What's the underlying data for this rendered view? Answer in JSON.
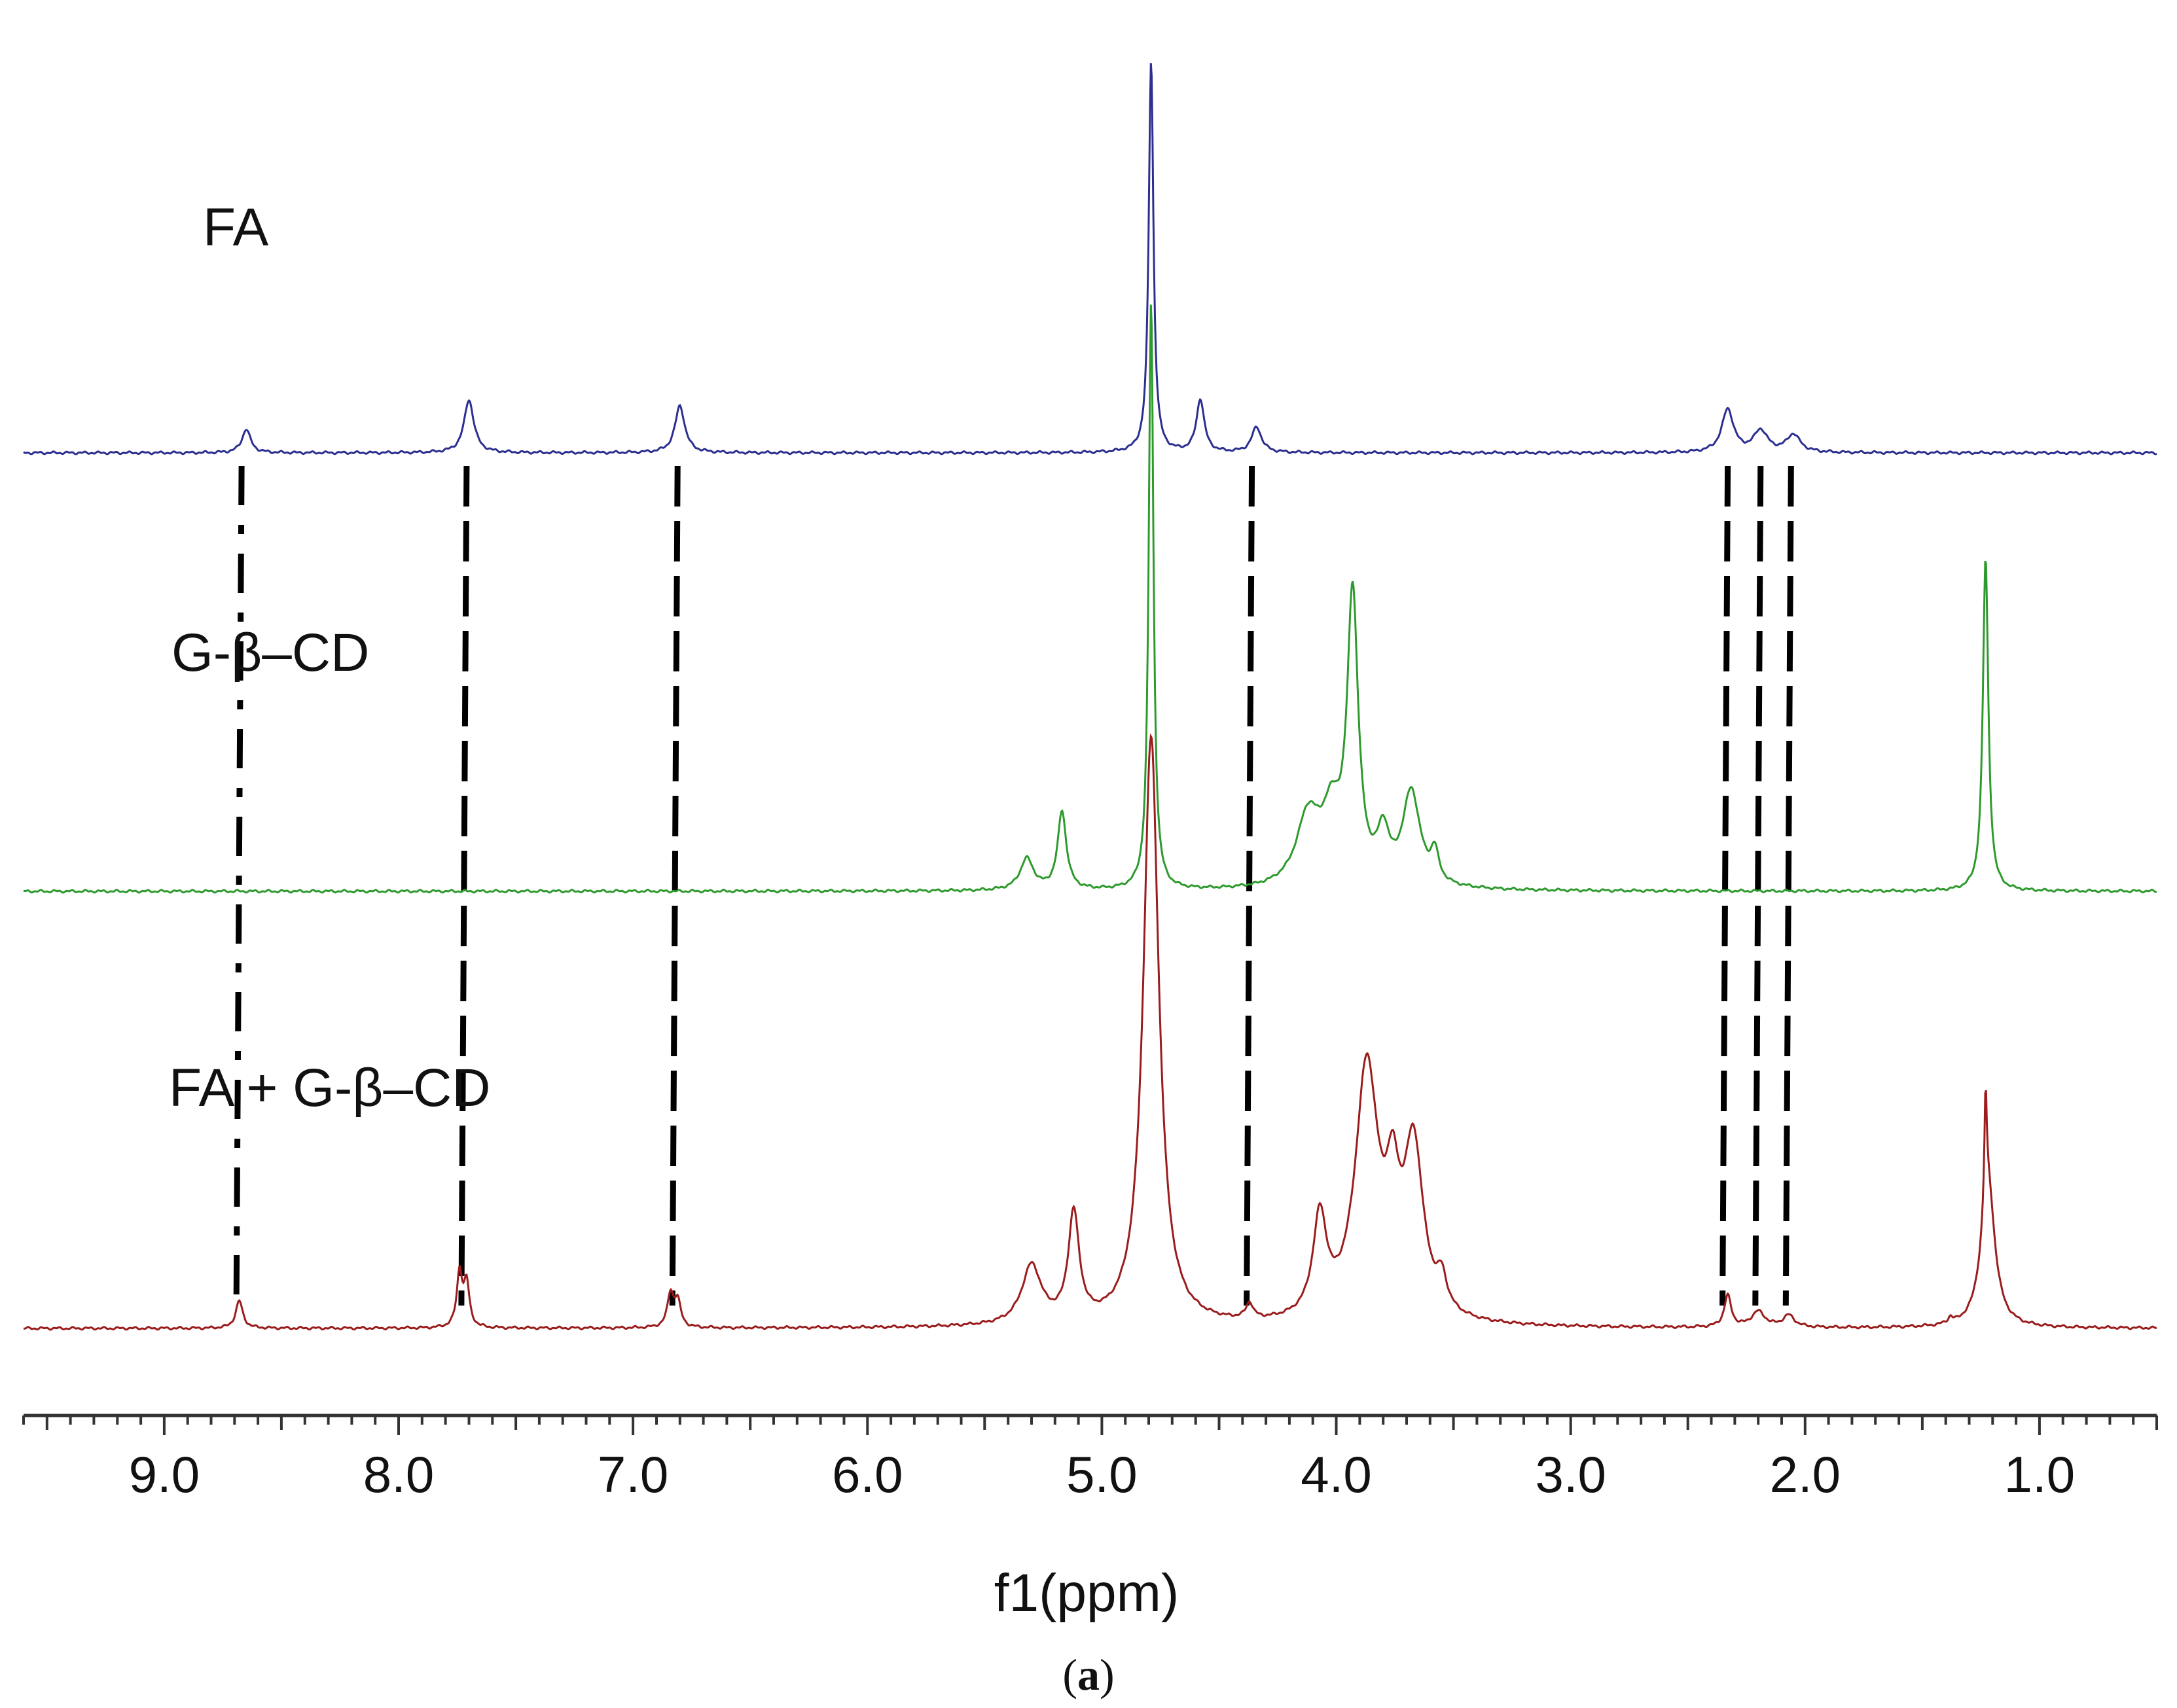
{
  "chart_data": {
    "type": "line",
    "title": "",
    "xlabel": "f1(ppm)",
    "ylabel": "",
    "xlim": [
      9.6,
      0.5
    ],
    "x_reversed": true,
    "grid": false,
    "ticks": [
      "9.0",
      "8.0",
      "7.0",
      "6.0",
      "5.0",
      "4.0",
      "3.0",
      "2.0",
      "1.0"
    ],
    "tick_values": [
      9.0,
      8.0,
      7.0,
      6.0,
      5.0,
      4.0,
      3.0,
      2.0,
      1.0
    ],
    "series": [
      {
        "name": "FA",
        "color": "#2b2f8f",
        "baseline_offset": 2.0,
        "peaks": [
          {
            "ppm": 8.65,
            "height": 0.12,
            "width": 0.022
          },
          {
            "ppm": 7.7,
            "height": 0.27,
            "width": 0.025
          },
          {
            "ppm": 6.8,
            "height": 0.24,
            "width": 0.025
          },
          {
            "ppm": 4.79,
            "height": 2.0,
            "width": 0.012
          },
          {
            "ppm": 4.58,
            "height": 0.27,
            "width": 0.02
          },
          {
            "ppm": 4.34,
            "height": 0.13,
            "width": 0.025
          },
          {
            "ppm": 2.33,
            "height": 0.22,
            "width": 0.03
          },
          {
            "ppm": 2.19,
            "height": 0.11,
            "width": 0.035
          },
          {
            "ppm": 2.05,
            "height": 0.09,
            "width": 0.035
          }
        ]
      },
      {
        "name": "G-β–CD",
        "color": "#2e9a2e",
        "baseline_offset": 1.0,
        "peaks": [
          {
            "ppm": 5.32,
            "height": 0.16,
            "width": 0.035
          },
          {
            "ppm": 5.17,
            "height": 0.4,
            "width": 0.022
          },
          {
            "ppm": 4.79,
            "height": 3.0,
            "width": 0.012
          },
          {
            "ppm": 4.12,
            "height": 0.35,
            "width": 0.06
          },
          {
            "ppm": 4.02,
            "height": 0.32,
            "width": 0.05
          },
          {
            "ppm": 3.93,
            "height": 1.45,
            "width": 0.028
          },
          {
            "ppm": 3.8,
            "height": 0.24,
            "width": 0.03
          },
          {
            "ppm": 3.68,
            "height": 0.48,
            "width": 0.045
          },
          {
            "ppm": 3.58,
            "height": 0.15,
            "width": 0.02
          },
          {
            "ppm": 1.23,
            "height": 1.7,
            "width": 0.014
          }
        ]
      },
      {
        "name": "FA + G-β–CD",
        "color": "#9b1c1c",
        "baseline_offset": 0.0,
        "peaks": [
          {
            "ppm": 8.68,
            "height": 0.14,
            "width": 0.018
          },
          {
            "ppm": 7.74,
            "height": 0.28,
            "width": 0.014
          },
          {
            "ppm": 7.71,
            "height": 0.22,
            "width": 0.014
          },
          {
            "ppm": 6.84,
            "height": 0.17,
            "width": 0.016
          },
          {
            "ppm": 6.81,
            "height": 0.13,
            "width": 0.016
          },
          {
            "ppm": 5.3,
            "height": 0.3,
            "width": 0.05
          },
          {
            "ppm": 5.12,
            "height": 0.55,
            "width": 0.028
          },
          {
            "ppm": 4.79,
            "height": 3.0,
            "width": 0.04
          },
          {
            "ppm": 4.37,
            "height": 0.08,
            "width": 0.018
          },
          {
            "ppm": 4.07,
            "height": 0.5,
            "width": 0.035
          },
          {
            "ppm": 3.87,
            "height": 1.28,
            "width": 0.06
          },
          {
            "ppm": 3.76,
            "height": 0.5,
            "width": 0.035
          },
          {
            "ppm": 3.67,
            "height": 0.85,
            "width": 0.05
          },
          {
            "ppm": 3.55,
            "height": 0.15,
            "width": 0.025
          },
          {
            "ppm": 2.33,
            "height": 0.16,
            "width": 0.018
          },
          {
            "ppm": 2.2,
            "height": 0.08,
            "width": 0.035
          },
          {
            "ppm": 2.07,
            "height": 0.06,
            "width": 0.03
          },
          {
            "ppm": 1.38,
            "height": 0.03,
            "width": 0.012
          },
          {
            "ppm": 1.22,
            "height": 0.75,
            "width": 0.035
          },
          {
            "ppm": 1.23,
            "height": 0.55,
            "width": 0.006
          }
        ]
      }
    ],
    "guide_lines_ppm": [
      8.67,
      7.71,
      6.81,
      4.36,
      2.33,
      2.19,
      2.06
    ],
    "caption": "(a)"
  }
}
